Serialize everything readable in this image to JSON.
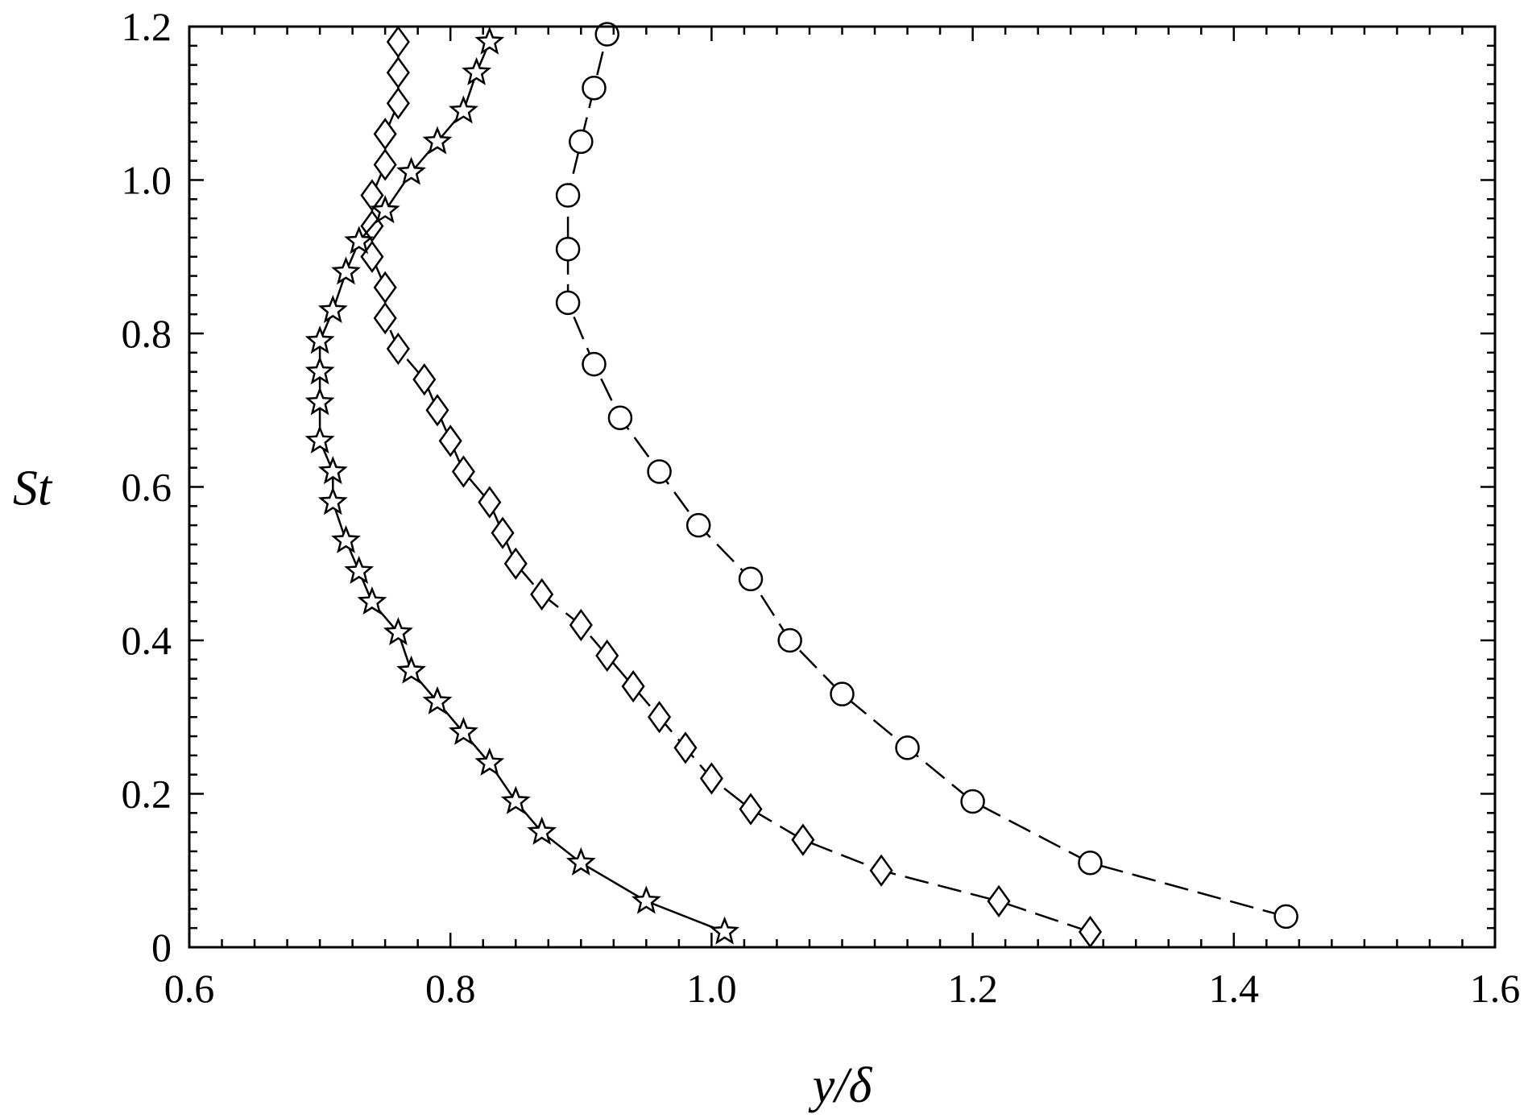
{
  "chart_data": {
    "type": "scatter",
    "xlabel": "y/δ",
    "ylabel": "St",
    "xlim": [
      0.6,
      1.6
    ],
    "ylim": [
      0,
      1.2
    ],
    "xticks": [
      "0.6",
      "0.8",
      "1.0",
      "1.2",
      "1.4",
      "1.6"
    ],
    "yticks": [
      "0",
      "0.2",
      "0.4",
      "0.6",
      "0.8",
      "1.0",
      "1.2"
    ],
    "grid": false,
    "series": [
      {
        "marker": "circle",
        "line": "long-dash",
        "color": "#000000",
        "points": [
          [
            1.44,
            0.04
          ],
          [
            1.29,
            0.11
          ],
          [
            1.2,
            0.19
          ],
          [
            1.15,
            0.26
          ],
          [
            1.1,
            0.33
          ],
          [
            1.06,
            0.4
          ],
          [
            1.03,
            0.48
          ],
          [
            0.99,
            0.55
          ],
          [
            0.96,
            0.62
          ],
          [
            0.93,
            0.69
          ],
          [
            0.91,
            0.76
          ],
          [
            0.89,
            0.84
          ],
          [
            0.89,
            0.91
          ],
          [
            0.89,
            0.98
          ],
          [
            0.9,
            1.05
          ],
          [
            0.91,
            1.12
          ],
          [
            0.92,
            1.19
          ]
        ]
      },
      {
        "marker": "diamond",
        "line": "long-dash",
        "color": "#000000",
        "points": [
          [
            1.29,
            0.02
          ],
          [
            1.22,
            0.06
          ],
          [
            1.13,
            0.1
          ],
          [
            1.07,
            0.14
          ],
          [
            1.03,
            0.18
          ],
          [
            1.0,
            0.22
          ],
          [
            0.98,
            0.26
          ],
          [
            0.96,
            0.3
          ],
          [
            0.94,
            0.34
          ],
          [
            0.92,
            0.38
          ],
          [
            0.9,
            0.42
          ],
          [
            0.87,
            0.46
          ],
          [
            0.85,
            0.5
          ],
          [
            0.84,
            0.54
          ],
          [
            0.83,
            0.58
          ],
          [
            0.81,
            0.62
          ],
          [
            0.8,
            0.66
          ],
          [
            0.79,
            0.7
          ],
          [
            0.78,
            0.74
          ],
          [
            0.76,
            0.78
          ],
          [
            0.75,
            0.82
          ],
          [
            0.75,
            0.86
          ],
          [
            0.74,
            0.9
          ],
          [
            0.74,
            0.94
          ],
          [
            0.74,
            0.98
          ],
          [
            0.75,
            1.02
          ],
          [
            0.75,
            1.06
          ],
          [
            0.76,
            1.1
          ],
          [
            0.76,
            1.14
          ],
          [
            0.76,
            1.18
          ]
        ]
      },
      {
        "marker": "star",
        "line": "solid",
        "color": "#000000",
        "points": [
          [
            1.01,
            0.02
          ],
          [
            0.95,
            0.06
          ],
          [
            0.9,
            0.11
          ],
          [
            0.87,
            0.15
          ],
          [
            0.85,
            0.19
          ],
          [
            0.83,
            0.24
          ],
          [
            0.81,
            0.28
          ],
          [
            0.79,
            0.32
          ],
          [
            0.77,
            0.36
          ],
          [
            0.76,
            0.41
          ],
          [
            0.74,
            0.45
          ],
          [
            0.73,
            0.49
          ],
          [
            0.72,
            0.53
          ],
          [
            0.71,
            0.58
          ],
          [
            0.71,
            0.62
          ],
          [
            0.7,
            0.66
          ],
          [
            0.7,
            0.71
          ],
          [
            0.7,
            0.75
          ],
          [
            0.7,
            0.79
          ],
          [
            0.71,
            0.83
          ],
          [
            0.72,
            0.88
          ],
          [
            0.73,
            0.92
          ],
          [
            0.75,
            0.96
          ],
          [
            0.77,
            1.01
          ],
          [
            0.79,
            1.05
          ],
          [
            0.81,
            1.09
          ],
          [
            0.82,
            1.14
          ],
          [
            0.83,
            1.18
          ]
        ]
      }
    ]
  }
}
